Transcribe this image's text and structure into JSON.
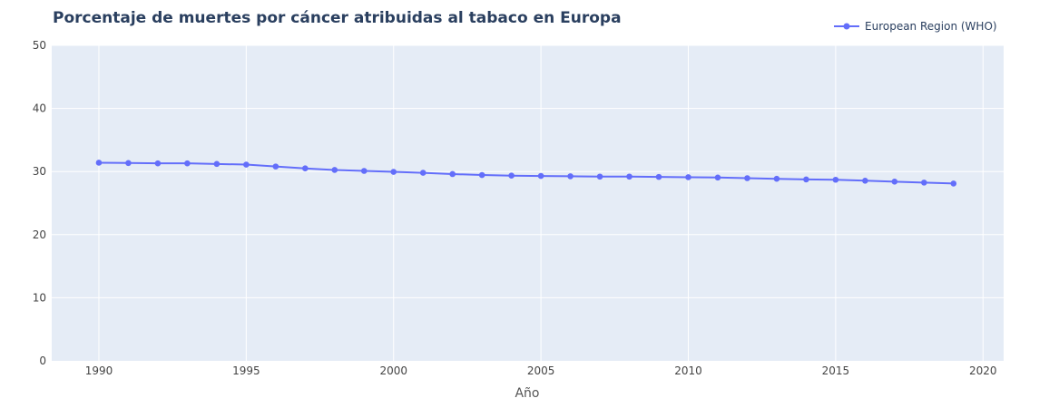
{
  "chart_data": {
    "type": "line",
    "title": "Porcentaje de muertes por cáncer atribuidas al tabaco en Europa",
    "xlabel": "Año",
    "ylabel": "",
    "xlim": [
      1988.4,
      2020.7
    ],
    "ylim": [
      0,
      50
    ],
    "x_ticks": [
      1990,
      1995,
      2000,
      2005,
      2010,
      2015,
      2020
    ],
    "y_ticks": [
      0,
      10,
      20,
      30,
      40,
      50
    ],
    "grid": true,
    "legend": "top-right",
    "colors": {
      "series": "#636efa",
      "plot_bg": "#e5ecf6",
      "grid": "#ffffff"
    },
    "series": [
      {
        "name": "European Region (WHO)",
        "x": [
          1990,
          1991,
          1992,
          1993,
          1994,
          1995,
          1996,
          1997,
          1998,
          1999,
          2000,
          2001,
          2002,
          2003,
          2004,
          2005,
          2006,
          2007,
          2008,
          2009,
          2010,
          2011,
          2012,
          2013,
          2014,
          2015,
          2016,
          2017,
          2018,
          2019
        ],
        "values": [
          31.4,
          31.35,
          31.3,
          31.3,
          31.2,
          31.1,
          30.8,
          30.5,
          30.25,
          30.1,
          29.95,
          29.8,
          29.6,
          29.45,
          29.35,
          29.3,
          29.25,
          29.2,
          29.2,
          29.15,
          29.1,
          29.05,
          28.95,
          28.85,
          28.75,
          28.7,
          28.55,
          28.4,
          28.25,
          28.1
        ]
      }
    ]
  }
}
